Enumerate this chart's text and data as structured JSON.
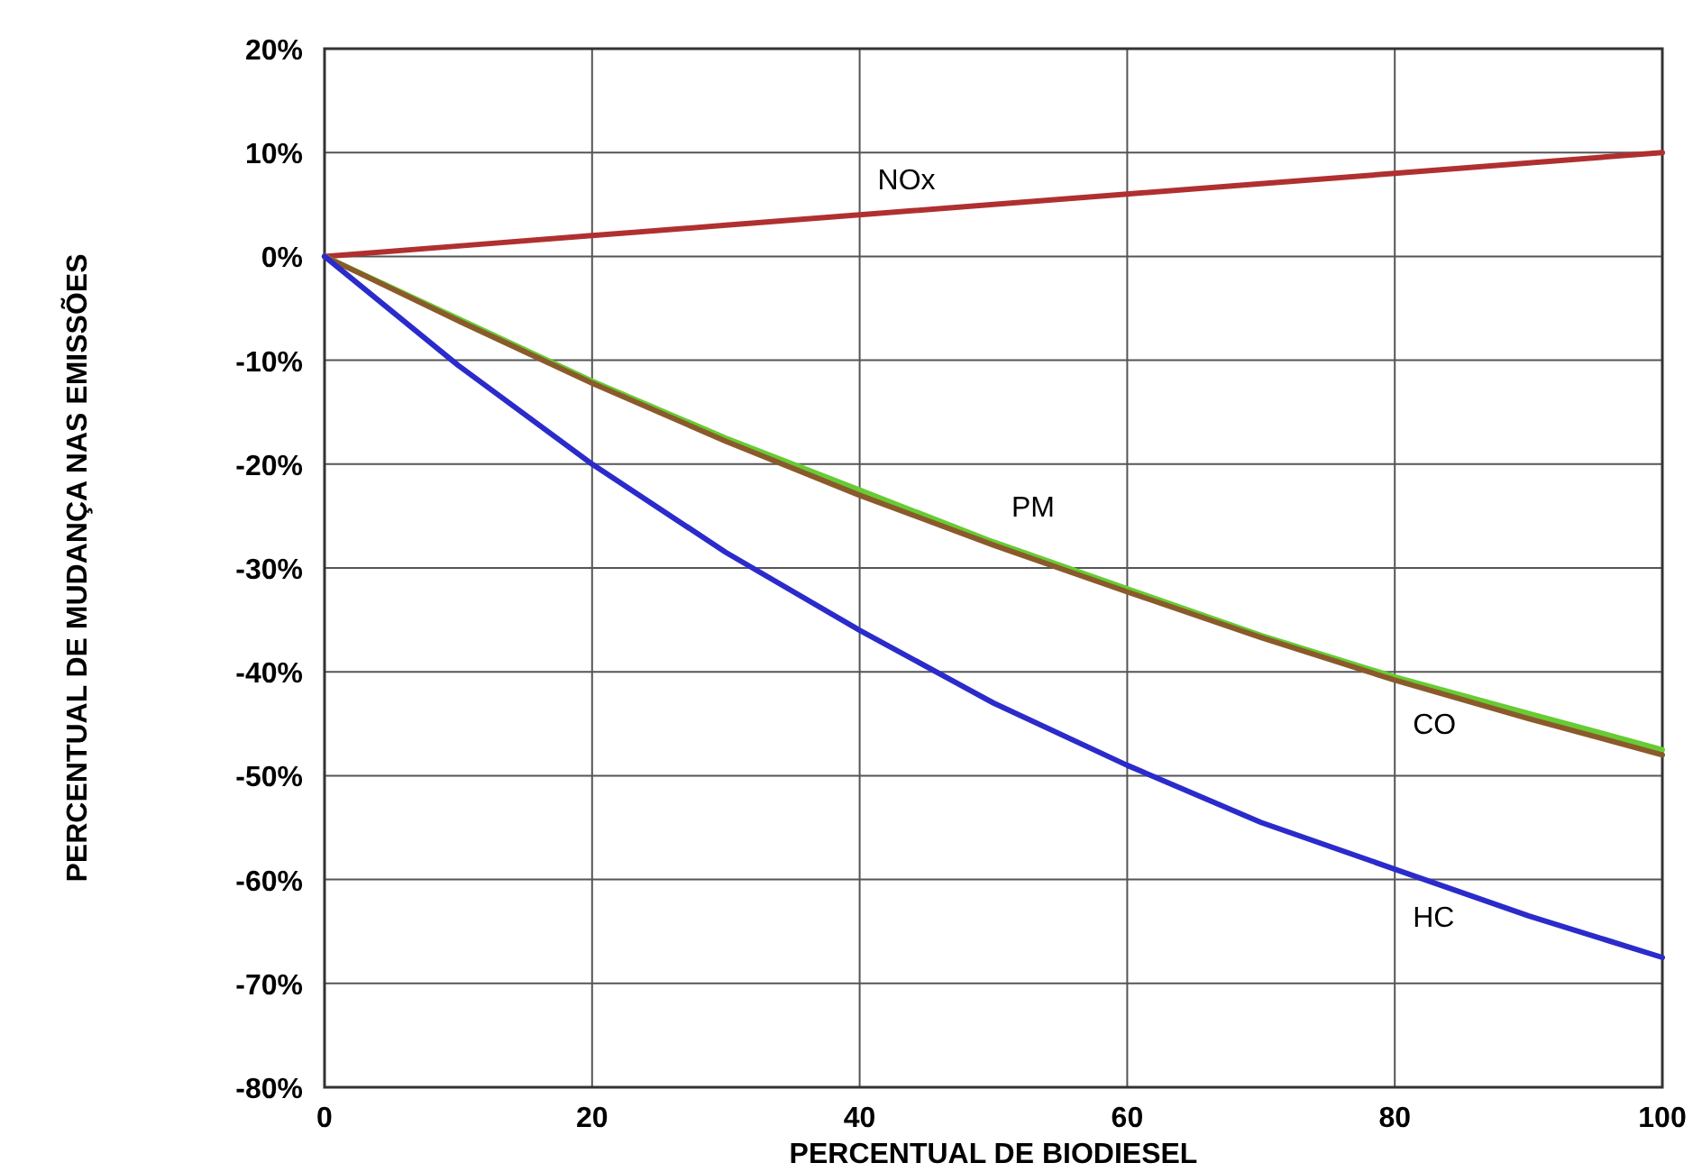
{
  "chart_data": {
    "type": "line",
    "xlabel": "PERCENTUAL DE BIODIESEL",
    "ylabel": "PERCENTUAL DE MUDANÇA NAS EMISSÕES",
    "x": [
      0,
      10,
      20,
      30,
      40,
      50,
      60,
      70,
      80,
      90,
      100
    ],
    "xlim": [
      0,
      100
    ],
    "xticks": [
      0,
      20,
      40,
      60,
      80,
      100
    ],
    "ylim": [
      -80,
      20
    ],
    "yticks": [
      {
        "value": -80,
        "label": "-80%"
      },
      {
        "value": -70,
        "label": "-70%"
      },
      {
        "value": -60,
        "label": "-60%"
      },
      {
        "value": -50,
        "label": "-50%"
      },
      {
        "value": -40,
        "label": "-40%"
      },
      {
        "value": -30,
        "label": "-30%"
      },
      {
        "value": -20,
        "label": "-20%"
      },
      {
        "value": -10,
        "label": "-10%"
      },
      {
        "value": 0,
        "label": "0%"
      },
      {
        "value": 10,
        "label": "10%"
      },
      {
        "value": 20,
        "label": "20%"
      }
    ],
    "grid": true,
    "marker": "none",
    "line_style": "solid",
    "series": [
      {
        "name": "NOx",
        "color": "#b03030",
        "values": [
          0,
          1,
          2,
          3,
          4,
          5,
          6,
          7,
          8,
          9,
          10
        ]
      },
      {
        "name": "PM",
        "color": "#66cc33",
        "values": [
          0,
          -6,
          -12,
          -17.5,
          -22.5,
          -27.5,
          -32,
          -36.5,
          -40.5,
          -44,
          -47.5
        ]
      },
      {
        "name": "CO",
        "color": "#8b5a2b",
        "values": [
          0,
          -6.2,
          -12.2,
          -17.8,
          -23,
          -27.8,
          -32.3,
          -36.7,
          -40.8,
          -44.5,
          -48
        ]
      },
      {
        "name": "HC",
        "color": "#2b2bcc",
        "values": [
          0,
          -10.5,
          -20,
          -28.5,
          -36,
          -43,
          -49,
          -54.5,
          -59,
          -63.5,
          -67.5
        ]
      }
    ]
  }
}
